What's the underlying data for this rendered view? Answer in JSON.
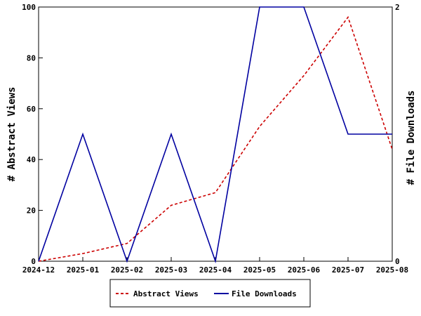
{
  "chart_data": {
    "type": "line",
    "x": [
      "2024-12",
      "2025-01",
      "2025-02",
      "2025-03",
      "2025-04",
      "2025-05",
      "2025-06",
      "2025-07",
      "2025-08"
    ],
    "ylabel_left": "# Abstract Views",
    "ylabel_right": "# File Downloads",
    "ylim_left": [
      0,
      100
    ],
    "ylim_right": [
      0,
      2
    ],
    "yticks_left": [
      "0",
      "20",
      "40",
      "60",
      "80",
      "100"
    ],
    "yticks_right": [
      "0",
      "2"
    ],
    "grid": false,
    "legend_position": "bottom",
    "series": [
      {
        "name": "Abstract Views",
        "axis": "left",
        "style": "dashed",
        "color": "#cc0000",
        "values": [
          0,
          3,
          7,
          22,
          27,
          53,
          73,
          96,
          44
        ]
      },
      {
        "name": "File Downloads",
        "axis": "right",
        "style": "solid",
        "color": "#0000a0",
        "values": [
          0,
          1,
          0,
          1,
          0,
          2,
          2,
          1,
          1
        ]
      }
    ]
  }
}
